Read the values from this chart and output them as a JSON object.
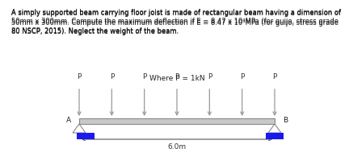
{
  "title_text": "A simply supported beam carrying floor joist is made of rectangular beam having a dimension of\n50mm x 300mm. Compute the maximum deflection if E = 8.47 x 10³MPa (for guijo, stress grade\n80 NSCP, 2015). Neglect the weight of the beam.",
  "where_label": "Where P = 1kN",
  "span_label": "6.0m",
  "A_label": "A",
  "B_label": "B",
  "P_label": "P",
  "beam_color": "#c8c8c8",
  "beam_edge_color": "#888888",
  "support_pin_color": "#aaaaaa",
  "support_rect_color": "#1a1aee",
  "load_arrow_color": "#999999",
  "background_color": "#ffffff",
  "num_loads": 7,
  "title_fontsize": 6.0,
  "label_fontsize": 6.5,
  "p_fontsize": 6.5
}
